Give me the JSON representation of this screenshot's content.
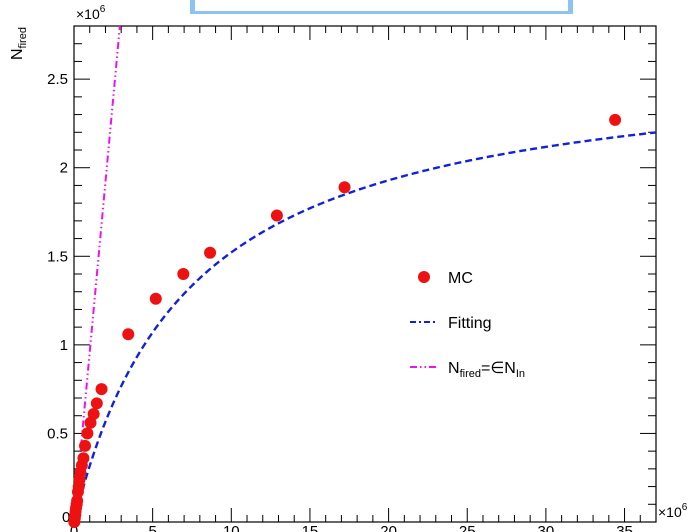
{
  "chart_data": {
    "type": "scatter",
    "title": "",
    "ylabel": {
      "main": "N",
      "sub": "fired"
    },
    "xlabel": "",
    "x_exponent": "×10",
    "x_exponent_power": "6",
    "y_exponent": "×10",
    "y_exponent_power": "6",
    "xlim": [
      0,
      37
    ],
    "ylim": [
      0,
      2.8
    ],
    "x_ticks": [
      0,
      5,
      10,
      15,
      20,
      25,
      30,
      35
    ],
    "x_tick_labels": [
      "0",
      "5",
      "10",
      "15",
      "20",
      "25",
      "30",
      "35"
    ],
    "y_ticks": [
      0.5,
      1,
      1.5,
      2,
      2.5
    ],
    "y_tick_labels": [
      "0.5",
      "1",
      "1.5",
      "2",
      "2.5"
    ],
    "y_origin_label": "0",
    "grid": false,
    "legend_position": "right-middle",
    "colors": {
      "mc": "#ee1111",
      "fit": "#1122dd",
      "linear": "#ee11ee",
      "top_bar": "#8bc4f2"
    },
    "series": [
      {
        "name": "MC",
        "kind": "markers",
        "x": [
          0.02,
          0.05,
          0.08,
          0.1,
          0.13,
          0.17,
          0.2,
          0.25,
          0.3,
          0.35,
          0.4,
          0.5,
          0.6,
          0.7,
          0.85,
          1.05,
          1.25,
          1.45,
          1.75,
          3.45,
          5.2,
          6.95,
          8.65,
          12.9,
          17.2,
          34.4
        ],
        "y": [
          0.0,
          0.02,
          0.04,
          0.06,
          0.08,
          0.1,
          0.12,
          0.17,
          0.2,
          0.24,
          0.28,
          0.32,
          0.36,
          0.43,
          0.5,
          0.56,
          0.61,
          0.67,
          0.75,
          1.06,
          1.26,
          1.4,
          1.52,
          1.73,
          1.89,
          2.27
        ]
      },
      {
        "name": "Fitting",
        "kind": "dashed-line",
        "a": 2.633,
        "b": 7.3
      },
      {
        "name": "N_fired=εN_In",
        "kind": "dash-dot-dot-line",
        "slope": 0.96
      }
    ],
    "legend": [
      {
        "label": "MC",
        "label_sub": ""
      },
      {
        "label": "Fitting",
        "label_sub": ""
      },
      {
        "label_parts": [
          {
            "t": "N",
            "sub": false
          },
          {
            "t": "fired",
            "sub": true
          },
          {
            "t": "=∈N",
            "sub": false
          },
          {
            "t": "In",
            "sub": true
          }
        ]
      }
    ]
  }
}
